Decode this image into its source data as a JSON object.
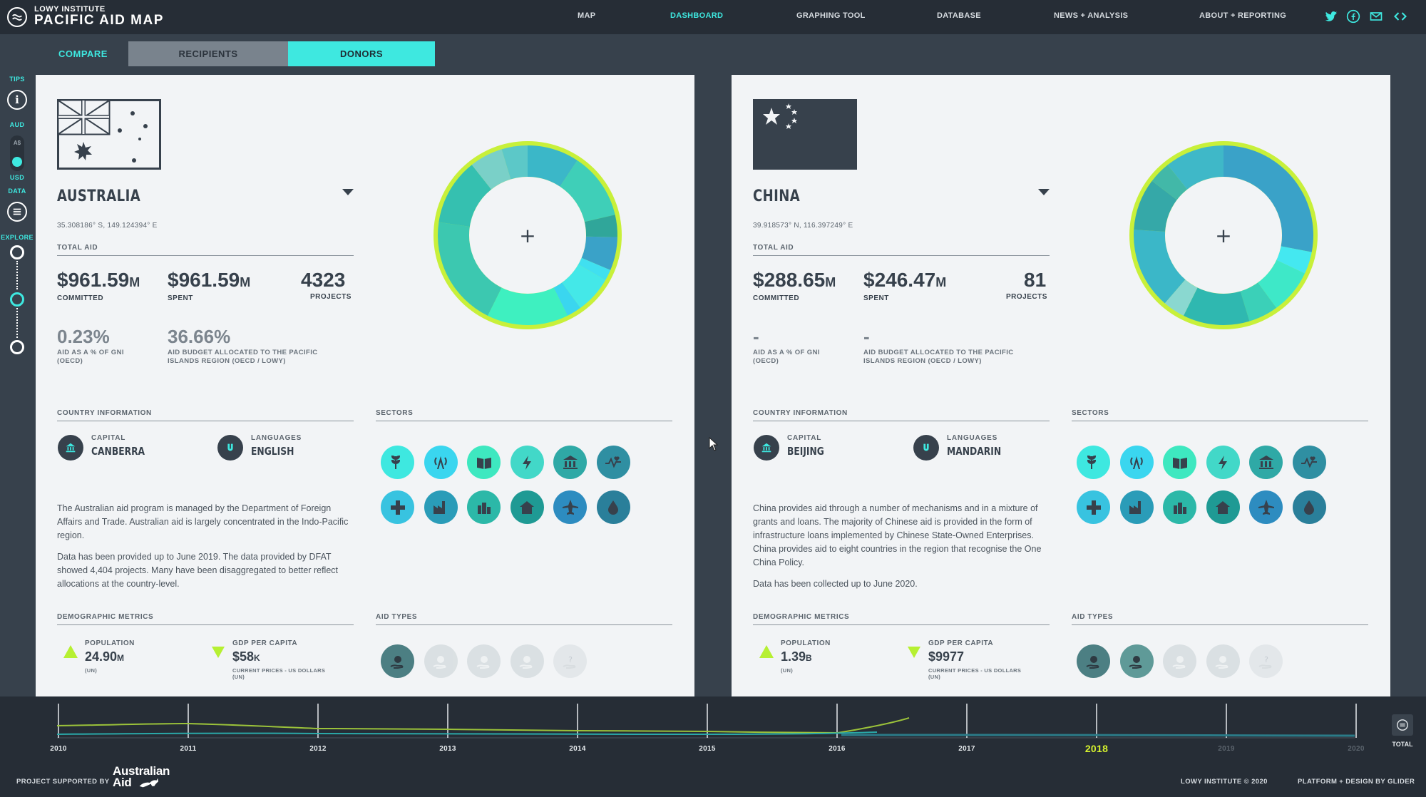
{
  "brand": {
    "line1": "LOWY INSTITUTE",
    "line2": "PACIFIC AID MAP"
  },
  "nav": [
    {
      "label": "MAP",
      "active": false
    },
    {
      "label": "DASHBOARD",
      "active": true
    },
    {
      "label": "GRAPHING TOOL",
      "active": false
    },
    {
      "label": "DATABASE",
      "active": false
    },
    {
      "label": "NEWS + ANALYSIS",
      "active": false
    },
    {
      "label": "ABOUT + REPORTING",
      "active": false
    }
  ],
  "social_icons": [
    "twitter-icon",
    "facebook-icon",
    "mail-icon",
    "embed-icon"
  ],
  "tabs": {
    "compare": "COMPARE",
    "recipients": "RECIPIENTS",
    "donors": "DONORS"
  },
  "sidebar": {
    "tips": "TIPS",
    "aud": "AUD",
    "aud_symbol": "A$",
    "usd": "USD",
    "data": "DATA",
    "explore": "EXPLORE"
  },
  "common_labels": {
    "total_aid": "TOTAL AID",
    "committed": "COMMITTED",
    "spent": "SPENT",
    "projects": "PROJECTS",
    "gni_line1": "AID AS A % OF GNI",
    "gni_line2": "(OECD)",
    "budget_line1": "AID BUDGET ALLOCATED TO THE PACIFIC",
    "budget_line2": "ISLANDS REGION (OECD / LOWY)",
    "country_information": "COUNTRY INFORMATION",
    "sectors": "SECTORS",
    "capital": "CAPITAL",
    "languages": "LANGUAGES",
    "demographic_metrics": "DEMOGRAPHIC METRICS",
    "aid_types": "AID TYPES",
    "population": "POPULATION",
    "un": "(UN)",
    "gdp_per_capita": "GDP PER CAPITA",
    "gdp_src_line1": "CURRENT PRICES - US DOLLARS",
    "gdp_src_line2": "(UN)",
    "donut_plus": "+"
  },
  "left": {
    "country": "AUSTRALIA",
    "coords": "35.308186° S, 149.124394° E",
    "committed": "$961.59",
    "committed_unit": "M",
    "spent": "$961.59",
    "spent_unit": "M",
    "projects": "4323",
    "gni": "0.23%",
    "budget": "36.66%",
    "capital": "CANBERRA",
    "language": "ENGLISH",
    "desc1": "The Australian aid program is managed by the Department of Foreign Affairs and Trade. Australian aid is largely concentrated in the Indo-Pacific region.",
    "desc2": "Data has been provided up to June 2019. The data provided by DFAT showed 4,404 projects. Many have been disaggregated to better reflect allocations at the country-level.",
    "population": "24.90",
    "population_unit": "M",
    "gdp": "$58",
    "gdp_unit": "K"
  },
  "right": {
    "country": "CHINA",
    "coords": "39.918573° N, 116.397249° E",
    "committed": "$288.65",
    "committed_unit": "M",
    "spent": "$246.47",
    "spent_unit": "M",
    "projects": "81",
    "gni": "-",
    "budget": "-",
    "capital": "BEIJING",
    "language": "MANDARIN",
    "desc1": "China provides aid through a number of mechanisms and in a mixture of grants and loans. The majority of Chinese aid is provided in the form of infrastructure loans implemented by Chinese State-Owned Enterprises. China provides aid to eight countries in the region that recognise the One China Policy.",
    "desc2": "Data has been collected up to June 2020.",
    "population": "1.39",
    "population_unit": "B",
    "gdp": "$9977",
    "gdp_unit": ""
  },
  "sector_icons": [
    "agriculture-icon",
    "communications-icon",
    "education-icon",
    "energy-icon",
    "government-icon",
    "health-icon",
    "humanitarian-icon",
    "industry-icon",
    "multisector-icon",
    "other-icon",
    "transport-icon",
    "water-icon"
  ],
  "colors": {
    "accent": "#3ee8e0",
    "lime": "#c8f03a",
    "dark": "#37414c"
  },
  "timeline": {
    "years": [
      "2010",
      "2011",
      "2012",
      "2013",
      "2014",
      "2015",
      "2016",
      "2017",
      "2018",
      "2019",
      "2020"
    ],
    "active_year": "2018",
    "total_label": "TOTAL"
  },
  "footer": {
    "supported_by": "PROJECT SUPPORTED BY",
    "ausaid_line1": "Australian",
    "ausaid_line2": "Aid",
    "copyright": "LOWY INSTITUTE © 2020",
    "platform": "PLATFORM + DESIGN BY GLIDER"
  }
}
